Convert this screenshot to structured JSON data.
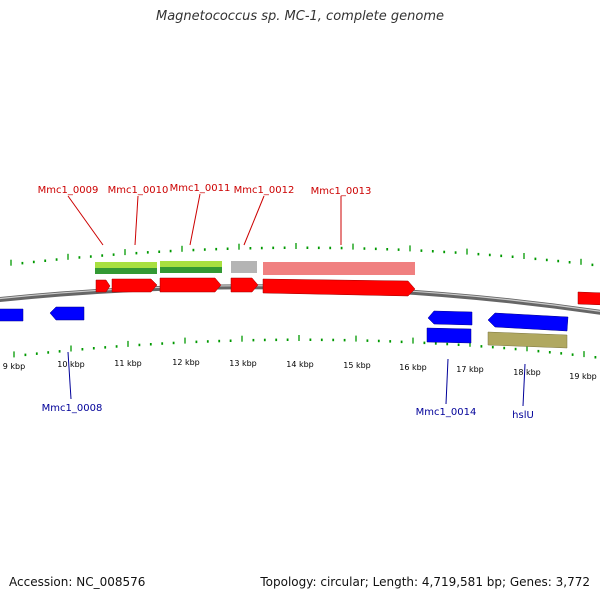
{
  "title": "Magnetococcus sp. MC-1, complete genome",
  "accession": "Accession: NC_008576",
  "summary": "Topology: circular; Length: 4,719,581 bp; Genes: 3,772",
  "colors": {
    "backbone": "#808080",
    "forward_cds": "#ff0000",
    "reverse_cds": "#0000ff",
    "rna": "#b0a860",
    "pink_feature": "#f08080",
    "grey_feature": "#b4b4b4",
    "green_feature": "#339933",
    "lime_feature": "#a8e040",
    "tick": "#009900",
    "label_forward": "#cc0000",
    "label_reverse": "#000099"
  },
  "kbp_labels": [
    "9 kbp",
    "10 kbp",
    "11 kbp",
    "12 kbp",
    "13 kbp",
    "14 kbp",
    "15 kbp",
    "16 kbp",
    "17 kbp",
    "18 kbp",
    "19 kbp"
  ],
  "gene_labels_top": [
    "Mmc1_0009",
    "Mmc1_0010",
    "Mmc1_0011",
    "Mmc1_0012",
    "Mmc1_0013"
  ],
  "gene_labels_bottom": [
    "Mmc1_0008",
    "Mmc1_0014",
    "hslU"
  ]
}
